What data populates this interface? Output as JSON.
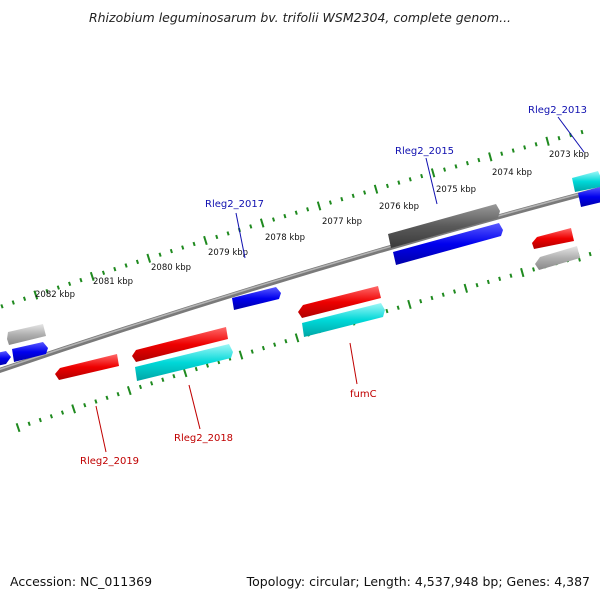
{
  "title": "Rhizobium leguminosarum bv. trifolii WSM2304, complete genom...",
  "footer": {
    "accession": "Accession: NC_011369",
    "stats": "Topology: circular; Length: 4,537,948 bp; Genes: 4,387"
  },
  "colors": {
    "backbone": "#808080",
    "ticks": "#1f8a1f",
    "forward_label": "#1010b0",
    "reverse_label": "#c00000",
    "red": "#ee0000",
    "cyan": "#00d8d8",
    "blue": "#0000ee",
    "gray": "#a0a0a0",
    "darkgray": "#555555"
  },
  "scale_labels": [
    "2073 kbp",
    "2074 kbp",
    "2075 kbp",
    "2076 kbp",
    "2077 kbp",
    "2078 kbp",
    "2079 kbp",
    "2080 kbp",
    "2081 kbp",
    "2082 kbp"
  ],
  "genes": [
    {
      "color": "cyan",
      "icon": "arrow-right-icon"
    },
    {
      "color": "blue",
      "icon": "arrow-right-icon"
    },
    {
      "color": "darkgray",
      "icon": "arrow-right-icon"
    },
    {
      "color": "blue",
      "icon": "arrow-right-icon"
    },
    {
      "color": "red",
      "icon": "arrow-left-icon"
    },
    {
      "color": "gray",
      "icon": "arrow-left-icon"
    },
    {
      "color": "red",
      "icon": "arrow-left-icon"
    },
    {
      "color": "cyan",
      "icon": "arrow-right-icon"
    },
    {
      "color": "blue",
      "icon": "arrow-right-icon"
    },
    {
      "color": "red",
      "icon": "arrow-left-icon"
    },
    {
      "color": "cyan",
      "icon": "arrow-right-icon"
    },
    {
      "color": "red",
      "icon": "arrow-left-icon"
    },
    {
      "color": "gray",
      "icon": "arrow-left-icon"
    },
    {
      "color": "blue",
      "icon": "arrow-right-icon"
    },
    {
      "color": "blue",
      "icon": "arrow-left-icon"
    }
  ],
  "gene_labels": [
    {
      "text": "Rleg2_2013",
      "strand": "forward"
    },
    {
      "text": "Rleg2_2015",
      "strand": "forward"
    },
    {
      "text": "Rleg2_2017",
      "strand": "forward"
    },
    {
      "text": "fumC",
      "strand": "reverse"
    },
    {
      "text": "Rleg2_2018",
      "strand": "reverse"
    },
    {
      "text": "Rleg2_2019",
      "strand": "reverse"
    }
  ]
}
